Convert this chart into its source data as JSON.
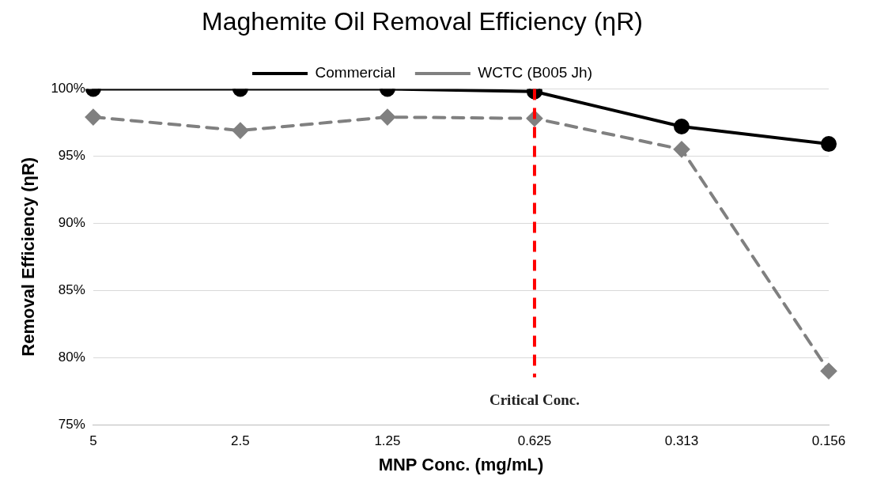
{
  "chart_data": {
    "type": "line",
    "title": "Maghemite Oil Removal Efficiency (ηR)",
    "xlabel": "MNP Conc. (mg/mL)",
    "ylabel": "Removal Efficiency (ηR)",
    "categories": [
      "5",
      "2.5",
      "1.25",
      "0.625",
      "0.313",
      "0.156"
    ],
    "series": [
      {
        "name": "Commercial",
        "color": "#000000",
        "values": [
          100,
          100,
          100,
          99.8,
          97.2,
          95.9
        ],
        "marker": "circle",
        "line_style": "solid"
      },
      {
        "name": "WCTC (B005 Jh)",
        "color": "#808080",
        "values": [
          97.9,
          96.9,
          97.9,
          97.8,
          95.5,
          79.0
        ],
        "marker": "diamond",
        "line_style": "dashed"
      }
    ],
    "ylim": [
      75,
      100
    ],
    "yticks": [
      {
        "value": 75,
        "label": "75%"
      },
      {
        "value": 80,
        "label": "80%"
      },
      {
        "value": 85,
        "label": "85%"
      },
      {
        "value": 90,
        "label": "90%"
      },
      {
        "value": 95,
        "label": "95%"
      },
      {
        "value": 100,
        "label": "100%"
      }
    ],
    "grid": "y",
    "legend": "top",
    "ref_lines": [
      {
        "axis": "x",
        "value": "0.625",
        "label": "Critical Conc.",
        "color": "#ff0000",
        "line_style": "dashed"
      }
    ]
  }
}
